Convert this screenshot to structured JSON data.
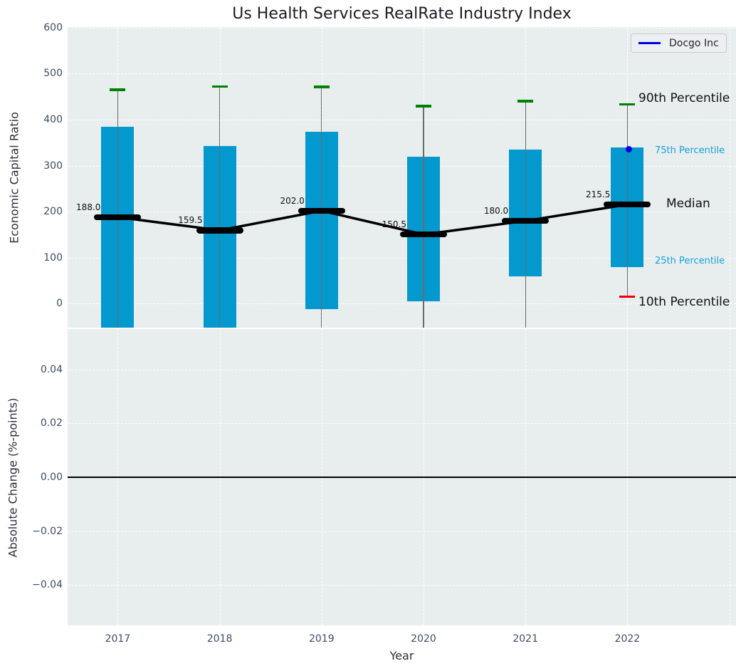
{
  "title": "Us Health Services RealRate Industry Index",
  "legend": {
    "label": "Docgo Inc"
  },
  "xlabel": "Year",
  "top_axis": {
    "ylabel": "Economic Capital Ratio",
    "ytick_labels": [
      "600",
      "500",
      "400",
      "300",
      "200",
      "100",
      "0"
    ],
    "ytick_values": [
      600,
      500,
      400,
      300,
      200,
      100,
      0
    ],
    "ylim": [
      -52,
      601
    ]
  },
  "bottom_axis": {
    "ylabel": "Absolute Change (%-points)",
    "ytick_labels": [
      "0.04",
      "0.02",
      "0.00",
      "−0.02",
      "−0.04"
    ],
    "ytick_values": [
      0.04,
      0.02,
      0.0,
      -0.02,
      -0.04
    ],
    "ylim": [
      -0.055,
      0.055
    ],
    "zero_line": 0.0
  },
  "annotations": [
    {
      "label": "90th Percentile",
      "size": "large",
      "color": "#111111"
    },
    {
      "label": "75th Percentile",
      "size": "small",
      "color": "#17a0da"
    },
    {
      "label": "Median",
      "size": "large",
      "color": "#111111"
    },
    {
      "label": "25th Percentile",
      "size": "small",
      "color": "#17a0da"
    },
    {
      "label": "10th Percentile",
      "size": "large",
      "color": "#111111"
    }
  ],
  "colors": {
    "bar": "#0499ce",
    "p90_cap": "#008000",
    "p10_cap": "#ee0000",
    "median": "#000000",
    "docgo": "#0000e0",
    "percentile_text": "#17a0da",
    "tick_text": "#3d4c66",
    "axes_bg": "#e8edee"
  },
  "chart_data": [
    {
      "type": "box",
      "title": "Us Health Services RealRate Industry Index",
      "ylabel": "Economic Capital Ratio",
      "ylim": [
        -52,
        601
      ],
      "categories": [
        "2017",
        "2018",
        "2019",
        "2020",
        "2021",
        "2022"
      ],
      "series": [
        {
          "name": "90th Percentile",
          "values": [
            465,
            472,
            471,
            429,
            440,
            433
          ]
        },
        {
          "name": "75th Percentile",
          "values": [
            385,
            342,
            373,
            320,
            335,
            340
          ]
        },
        {
          "name": "Median",
          "values": [
            188.0,
            159.5,
            202.0,
            150.5,
            180.0,
            215.5
          ]
        },
        {
          "name": "25th Percentile",
          "values": [
            null,
            null,
            -12,
            5,
            60,
            80
          ]
        },
        {
          "name": "10th Percentile",
          "values": [
            null,
            null,
            null,
            null,
            null,
            15
          ]
        }
      ],
      "median_labels": [
        "188.0",
        "159.5",
        "202.0",
        "150.5",
        "180.0",
        "215.5"
      ],
      "docgo_point": {
        "category": "2022",
        "value": 335
      },
      "note": "25th percentile bars for 2017-2018 and 10th percentile whiskers for 2017-2021 extend below the visible axis range (clipped at axis bottom)",
      "grid": true,
      "legend_position": "upper right"
    },
    {
      "type": "line",
      "ylabel": "Absolute Change (%-points)",
      "xlabel": "Year",
      "ylim": [
        -0.055,
        0.055
      ],
      "categories": [
        "2017",
        "2018",
        "2019",
        "2020",
        "2021",
        "2022"
      ],
      "series": [],
      "zero_line": 0.0,
      "grid": true
    }
  ]
}
